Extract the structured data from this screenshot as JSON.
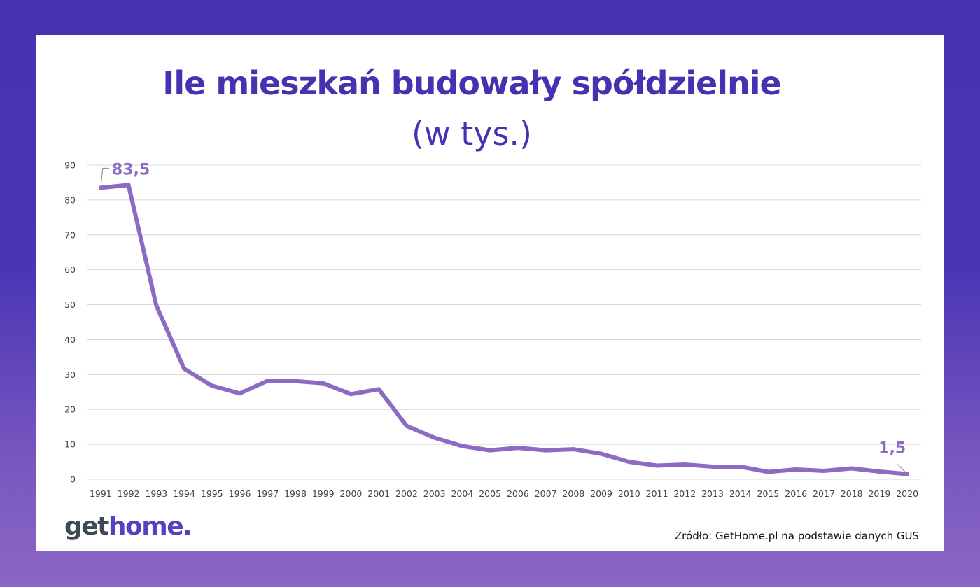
{
  "title": "Ile mieszkań budowały spółdzielnie",
  "subtitle": "(w tys.)",
  "source": "Źródło: GetHome.pl na podstawie danych GUS",
  "logo": {
    "part1": "get",
    "part2": "home",
    "part3": "."
  },
  "colors": {
    "frame_top": "#4633b4",
    "frame_bottom": "#8a66c4",
    "title": "#4433b0",
    "line": "#8e6bc2",
    "grid": "#d9d9d9",
    "logo_dark": "#3d4a52",
    "logo_accent": "#5a3fc0"
  },
  "chart_data": {
    "type": "line",
    "title": "Ile mieszkań budowały spółdzielnie",
    "subtitle": "(w tys.)",
    "xlabel": "",
    "ylabel": "",
    "ylim": [
      0,
      90
    ],
    "yticks": [
      0,
      10,
      20,
      30,
      40,
      50,
      60,
      70,
      80,
      90
    ],
    "grid": true,
    "legend": "none",
    "categories": [
      "1991",
      "1992",
      "1993",
      "1994",
      "1995",
      "1996",
      "1997",
      "1998",
      "1999",
      "2000",
      "2001",
      "2002",
      "2003",
      "2004",
      "2005",
      "2006",
      "2007",
      "2008",
      "2009",
      "2010",
      "2011",
      "2012",
      "2013",
      "2014",
      "2015",
      "2016",
      "2017",
      "2018",
      "2019",
      "2020"
    ],
    "series": [
      {
        "values": [
          83.5,
          84.3,
          49.8,
          31.7,
          26.8,
          24.6,
          28.2,
          28.1,
          27.5,
          24.4,
          25.8,
          15.3,
          11.9,
          9.5,
          8.3,
          9.0,
          8.3,
          8.6,
          7.3,
          5.0,
          3.9,
          4.2,
          3.6,
          3.6,
          2.1,
          2.8,
          2.4,
          3.1,
          2.2,
          1.5
        ]
      }
    ],
    "annotations": [
      {
        "label": "83,5",
        "category": "1991"
      },
      {
        "label": "1,5",
        "category": "2020"
      }
    ]
  }
}
